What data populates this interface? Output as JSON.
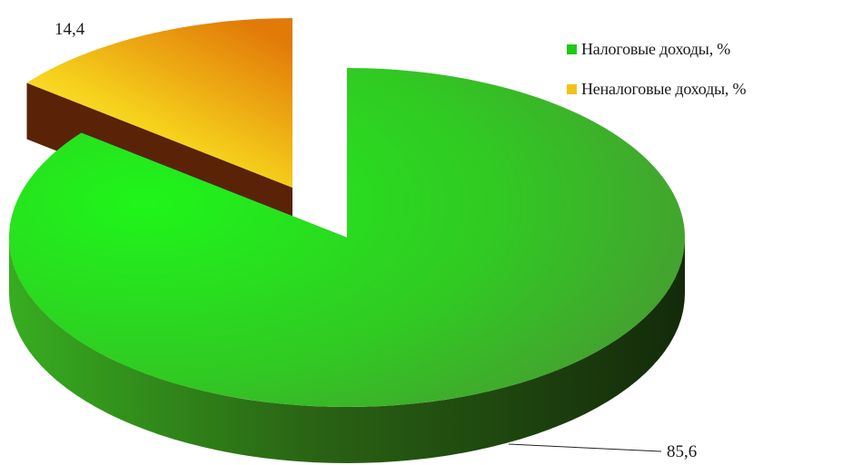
{
  "chart_data": {
    "type": "pie",
    "variant": "3d-exploded",
    "title": "",
    "categories": [
      "Налоговые доходы, %",
      "Неналоговые доходы, %"
    ],
    "values": [
      85.6,
      14.4
    ],
    "data_labels": [
      "85,6",
      "14,4"
    ],
    "colors": [
      "#22c81a",
      "#f2c21a"
    ],
    "side_colors": [
      "#2c6a18",
      "#6a2a08"
    ],
    "legend_position": "top-right",
    "grid": false
  }
}
